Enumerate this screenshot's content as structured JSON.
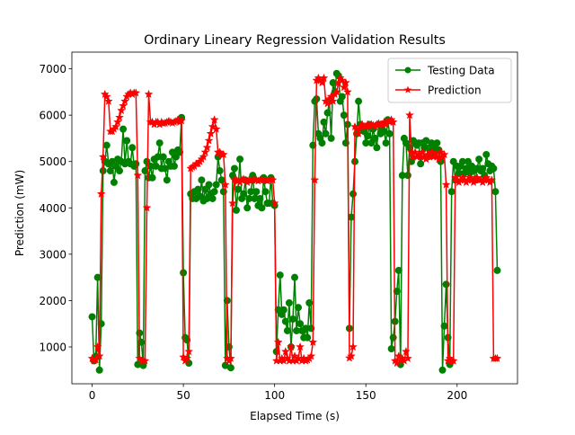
{
  "chart_data": {
    "type": "line",
    "title": "Ordinary Lineary Regression Validation Results",
    "x_label": "Elapsed Time (s)",
    "y_label": "Prediction (mW)",
    "x": [
      0,
      1,
      2,
      3,
      4,
      5,
      6,
      7,
      8,
      9,
      10,
      11,
      12,
      13,
      14,
      15,
      16,
      17,
      18,
      19,
      20,
      21,
      22,
      23,
      24,
      25,
      26,
      27,
      28,
      29,
      30,
      31,
      32,
      33,
      34,
      35,
      36,
      37,
      38,
      39,
      40,
      41,
      42,
      43,
      44,
      45,
      46,
      47,
      48,
      49,
      50,
      51,
      52,
      53,
      54,
      55,
      56,
      57,
      58,
      59,
      60,
      61,
      62,
      63,
      64,
      65,
      66,
      67,
      68,
      69,
      70,
      71,
      72,
      73,
      74,
      75,
      76,
      77,
      78,
      79,
      80,
      81,
      82,
      83,
      84,
      85,
      86,
      87,
      88,
      89,
      90,
      91,
      92,
      93,
      94,
      95,
      96,
      97,
      98,
      99,
      100,
      101,
      102,
      103,
      104,
      105,
      106,
      107,
      108,
      109,
      110,
      111,
      112,
      113,
      114,
      115,
      116,
      117,
      118,
      119,
      120,
      121,
      122,
      123,
      124,
      125,
      126,
      127,
      128,
      129,
      130,
      131,
      132,
      133,
      134,
      135,
      136,
      137,
      138,
      139,
      140,
      141,
      142,
      143,
      144,
      145,
      146,
      147,
      148,
      149,
      150,
      151,
      152,
      153,
      154,
      155,
      156,
      157,
      158,
      159,
      160,
      161,
      162,
      163,
      164,
      165,
      166,
      167,
      168,
      169,
      170,
      171,
      172,
      173,
      174,
      175,
      176,
      177,
      178,
      179,
      180,
      181,
      182,
      183,
      184,
      185,
      186,
      187,
      188,
      189,
      190,
      191,
      192,
      193,
      194,
      195,
      196,
      197,
      198,
      199,
      200,
      201,
      202,
      203,
      204,
      205,
      206,
      207,
      208,
      209,
      210,
      211,
      212,
      213,
      214,
      215,
      216,
      217,
      218,
      219,
      220,
      221,
      222
    ],
    "series": [
      {
        "name": "Testing Data",
        "color": "#008000",
        "marker": "circle",
        "values": [
          1650,
          700,
          800,
          2500,
          500,
          1500,
          4800,
          5000,
          5350,
          4950,
          4800,
          5000,
          4550,
          4900,
          5050,
          4800,
          5000,
          5700,
          4950,
          5450,
          5000,
          4950,
          5300,
          4900,
          4950,
          620,
          1300,
          1100,
          600,
          4800,
          5000,
          4650,
          4900,
          4650,
          5050,
          4900,
          5100,
          5400,
          4850,
          5100,
          4850,
          4600,
          5000,
          4900,
          5200,
          4900,
          5100,
          5250,
          5200,
          5950,
          2600,
          1200,
          1150,
          650,
          4300,
          4200,
          4350,
          4200,
          4400,
          4250,
          4600,
          4150,
          4400,
          4200,
          4500,
          4300,
          4200,
          4350,
          4500,
          5100,
          4800,
          4600,
          4350,
          600,
          2000,
          1000,
          550,
          4700,
          4850,
          3950,
          4400,
          5050,
          4200,
          4300,
          4600,
          4000,
          4200,
          4350,
          4700,
          4200,
          4350,
          4050,
          4200,
          4000,
          4650,
          4350,
          4100,
          4100,
          4650,
          4100,
          4050,
          900,
          1800,
          2550,
          1700,
          1800,
          1550,
          1350,
          1950,
          1000,
          1600,
          2500,
          1350,
          1850,
          1500,
          1350,
          1200,
          1400,
          1200,
          1950,
          1400,
          5350,
          6300,
          6350,
          5600,
          5500,
          5400,
          5850,
          5600,
          6050,
          6300,
          5500,
          6700,
          6500,
          6900,
          6850,
          6300,
          6400,
          6000,
          5400,
          5800,
          1400,
          3800,
          4300,
          5000,
          5600,
          6300,
          5800,
          5700,
          5650,
          5400,
          5550,
          5800,
          5400,
          5700,
          5500,
          5300,
          5800,
          5600,
          5700,
          5650,
          5400,
          5900,
          5600,
          960,
          1200,
          1550,
          2200,
          2650,
          620,
          4700,
          5500,
          5400,
          4700,
          5300,
          5000,
          5450,
          5400,
          5350,
          5400,
          4950,
          5400,
          5300,
          5450,
          5100,
          5300,
          5400,
          5200,
          5300,
          5400,
          5250,
          5000,
          500,
          1450,
          2350,
          1200,
          620,
          4350,
          5000,
          4600,
          4900,
          4750,
          4900,
          5000,
          4750,
          4850,
          5000,
          4750,
          4900,
          4800,
          4600,
          4850,
          5050,
          4800,
          4850,
          4700,
          5150,
          4950,
          4800,
          4900,
          4850,
          4350,
          2650
        ]
      },
      {
        "name": "Prediction",
        "color": "#ff0000",
        "marker": "star",
        "values": [
          750,
          700,
          720,
          1000,
          800,
          4300,
          5100,
          6450,
          6400,
          6300,
          5650,
          5650,
          5700,
          5750,
          5850,
          5950,
          6100,
          6200,
          6300,
          6400,
          6450,
          6480,
          6450,
          6480,
          6480,
          4700,
          750,
          700,
          700,
          700,
          4000,
          6450,
          5850,
          5850,
          5800,
          5850,
          5850,
          5800,
          5850,
          5820,
          5830,
          5850,
          5870,
          5850,
          5830,
          5850,
          5870,
          5900,
          5850,
          5880,
          780,
          700,
          750,
          900,
          4850,
          4880,
          4900,
          4950,
          4950,
          5000,
          5050,
          5100,
          5200,
          5300,
          5450,
          5600,
          5750,
          5900,
          5700,
          5200,
          5200,
          5150,
          5150,
          4500,
          750,
          700,
          750,
          4100,
          4600,
          4600,
          4580,
          4550,
          4600,
          4620,
          4600,
          4550,
          4600,
          4580,
          4600,
          4620,
          4600,
          4580,
          4600,
          4620,
          4600,
          4600,
          4580,
          4600,
          4620,
          4600,
          4100,
          700,
          1100,
          700,
          750,
          700,
          900,
          750,
          700,
          1000,
          700,
          800,
          700,
          750,
          1000,
          700,
          750,
          700,
          720,
          750,
          800,
          1100,
          4600,
          6750,
          6800,
          6750,
          6700,
          6800,
          6300,
          6250,
          6350,
          6400,
          6300,
          6450,
          6500,
          6700,
          6800,
          6750,
          6600,
          6700,
          6500,
          760,
          800,
          1000,
          5750,
          5700,
          5600,
          5750,
          5800,
          5750,
          5750,
          5800,
          5750,
          5800,
          5780,
          5750,
          5800,
          5820,
          5780,
          5800,
          5850,
          5800,
          5880,
          5850,
          5900,
          5850,
          700,
          650,
          800,
          700,
          750,
          700,
          900,
          750,
          6000,
          5200,
          5100,
          5200,
          5100,
          5150,
          5100,
          5200,
          5100,
          5050,
          5150,
          5100,
          5200,
          5100,
          5150,
          5100,
          5050,
          5200,
          5100,
          5150,
          4500,
          700,
          750,
          700,
          700,
          4650,
          4600,
          4550,
          4600,
          4650,
          4600,
          4550,
          4600,
          4650,
          4600,
          4550,
          4600,
          4650,
          4600,
          4600,
          4550,
          4600,
          4650,
          4600,
          4550,
          4600,
          750,
          750,
          750
        ]
      }
    ],
    "xlim": [
      -11.1,
      233.1
    ],
    "ylim": [
      205,
      7360
    ],
    "xticks": [
      0,
      50,
      100,
      150,
      200
    ],
    "yticks": [
      1000,
      2000,
      3000,
      4000,
      5000,
      6000,
      7000
    ],
    "legend": "upper right"
  }
}
